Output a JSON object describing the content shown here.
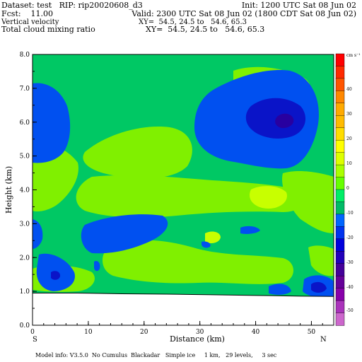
{
  "header": {
    "line1_left": "Dataset: test   RIP: rip20020608_d3",
    "line1_right": "Init: 1200 UTC Sat 08 Jun 02",
    "line2_left": "Fcst:    11.00",
    "line2_right": "Valid: 2300 UTC Sat 08 Jun 02 (1800 CDT Sat 08 Jun 02)",
    "line3_left": "Vertical velocity",
    "line3_right": "XY=  54.5, 24.5 to   54.6, 65.3",
    "line4_left": "Total cloud mixing ratio",
    "line4_right": "XY=  54.5, 24.5 to   54.6, 65.3"
  },
  "footer": {
    "model_info": "Model info: V3.5.0  No Cumulus  Blackadar   Simple ice     1 km,   29 levels,     3 sec"
  },
  "chart_data": {
    "type": "heatmap",
    "xlabel": "Distance (km)",
    "ylabel": "Height (km)",
    "xlim": [
      0,
      54
    ],
    "ylim": [
      0,
      8
    ],
    "x_ticks": [
      0,
      10,
      20,
      30,
      40,
      50
    ],
    "x_tick_labels": [
      "0",
      "10",
      "20",
      "30",
      "40",
      "50"
    ],
    "y_ticks": [
      0,
      1,
      2,
      3,
      4,
      5,
      6,
      7,
      8
    ],
    "y_tick_labels": [
      "0.0",
      "1.0",
      "2.0",
      "3.0",
      "4.0",
      "5.0",
      "6.0",
      "7.0",
      "8.0"
    ],
    "x_endpoints": {
      "left": "S",
      "right": "N"
    },
    "colorbar": {
      "units": "cm s⁻¹",
      "labels": [
        "40",
        "30",
        "20",
        "10",
        "0",
        "-10",
        "-20",
        "-30",
        "-40",
        "-50"
      ],
      "colors": [
        "#ff0000",
        "#ff2a00",
        "#ff5500",
        "#ff8800",
        "#ffaa00",
        "#ffbb00",
        "#ffdd00",
        "#ffff00",
        "#ddff00",
        "#aaff00",
        "#66ff00",
        "#00ee66",
        "#00bb66",
        "#0066ff",
        "#0033ee",
        "#0000dd",
        "#2200bb",
        "#440099",
        "#660099",
        "#8800aa",
        "#aa33bb",
        "#cc66cc"
      ]
    },
    "fields": {
      "base_color": "#00c864",
      "levels": {
        "light_green": "#80f000",
        "yellow_green": "#c8ff00",
        "blue": "#0050f0",
        "dark_blue": "#0a14c8",
        "indigo": "#2800a0"
      }
    },
    "terrain_height_km": [
      0.95,
      0.95,
      0.93,
      0.92,
      0.9,
      0.88,
      0.86,
      0.85
    ],
    "terrain_distance_km": [
      0,
      8,
      16,
      24,
      32,
      40,
      48,
      54
    ]
  }
}
